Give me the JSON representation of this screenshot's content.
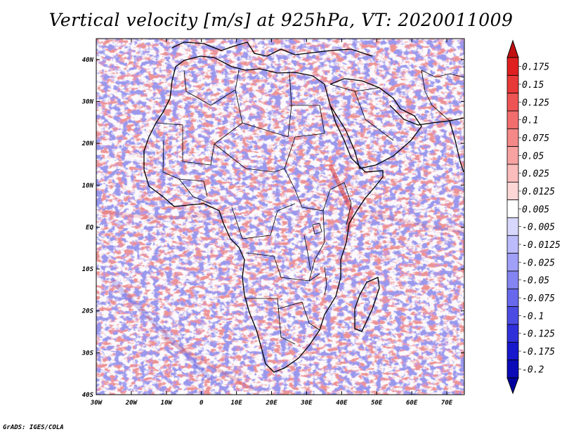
{
  "title": "Vertical velocity [m/s] at 925hPa, VT: 2020011009",
  "credit": "GrADS: IGES/COLA",
  "map": {
    "lon_range": [
      -30,
      75
    ],
    "lat_range": [
      -40,
      45
    ],
    "lat_ticks": [
      {
        "value": 40,
        "label": "40N"
      },
      {
        "value": 30,
        "label": "30N"
      },
      {
        "value": 20,
        "label": "20N"
      },
      {
        "value": 10,
        "label": "10N"
      },
      {
        "value": 0,
        "label": "EQ"
      },
      {
        "value": -10,
        "label": "10S"
      },
      {
        "value": -20,
        "label": "20S"
      },
      {
        "value": -30,
        "label": "30S"
      },
      {
        "value": -40,
        "label": "40S"
      }
    ],
    "lon_ticks": [
      {
        "value": -30,
        "label": "30W"
      },
      {
        "value": -20,
        "label": "20W"
      },
      {
        "value": -10,
        "label": "10W"
      },
      {
        "value": 0,
        "label": "0"
      },
      {
        "value": 10,
        "label": "10E"
      },
      {
        "value": 20,
        "label": "20E"
      },
      {
        "value": 30,
        "label": "30E"
      },
      {
        "value": 40,
        "label": "40E"
      },
      {
        "value": 50,
        "label": "50E"
      },
      {
        "value": 60,
        "label": "60E"
      },
      {
        "value": 70,
        "label": "70E"
      }
    ]
  },
  "colorbar": {
    "levels": [
      {
        "label": "0.175",
        "color": "#e02020"
      },
      {
        "label": "0.15",
        "color": "#e83838"
      },
      {
        "label": "0.125",
        "color": "#ee5454"
      },
      {
        "label": "0.1",
        "color": "#f26e6e"
      },
      {
        "label": "0.075",
        "color": "#f58888"
      },
      {
        "label": "0.05",
        "color": "#f8a2a2"
      },
      {
        "label": "0.025",
        "color": "#fbbcbc"
      },
      {
        "label": "0.0125",
        "color": "#fdd6d6"
      },
      {
        "label": "0.005",
        "color": "#ffffff"
      },
      {
        "label": "-0.005",
        "color": "#d8d8ff"
      },
      {
        "label": "-0.0125",
        "color": "#bcbcfc"
      },
      {
        "label": "-0.025",
        "color": "#a0a0f8"
      },
      {
        "label": "-0.05",
        "color": "#8484f2"
      },
      {
        "label": "-0.075",
        "color": "#6868ec"
      },
      {
        "label": "-0.1",
        "color": "#4c4ce4"
      },
      {
        "label": "-0.125",
        "color": "#3030da"
      },
      {
        "label": "-0.175",
        "color": "#1818cc"
      },
      {
        "label": "-0.2",
        "color": "#0a0ab8"
      }
    ],
    "top_color": "#c01010",
    "bottom_color": "#0000a0"
  },
  "colors": {
    "positive": "#e04040",
    "negative": "#4040e0",
    "coast": "#000000",
    "border": "#000000"
  }
}
